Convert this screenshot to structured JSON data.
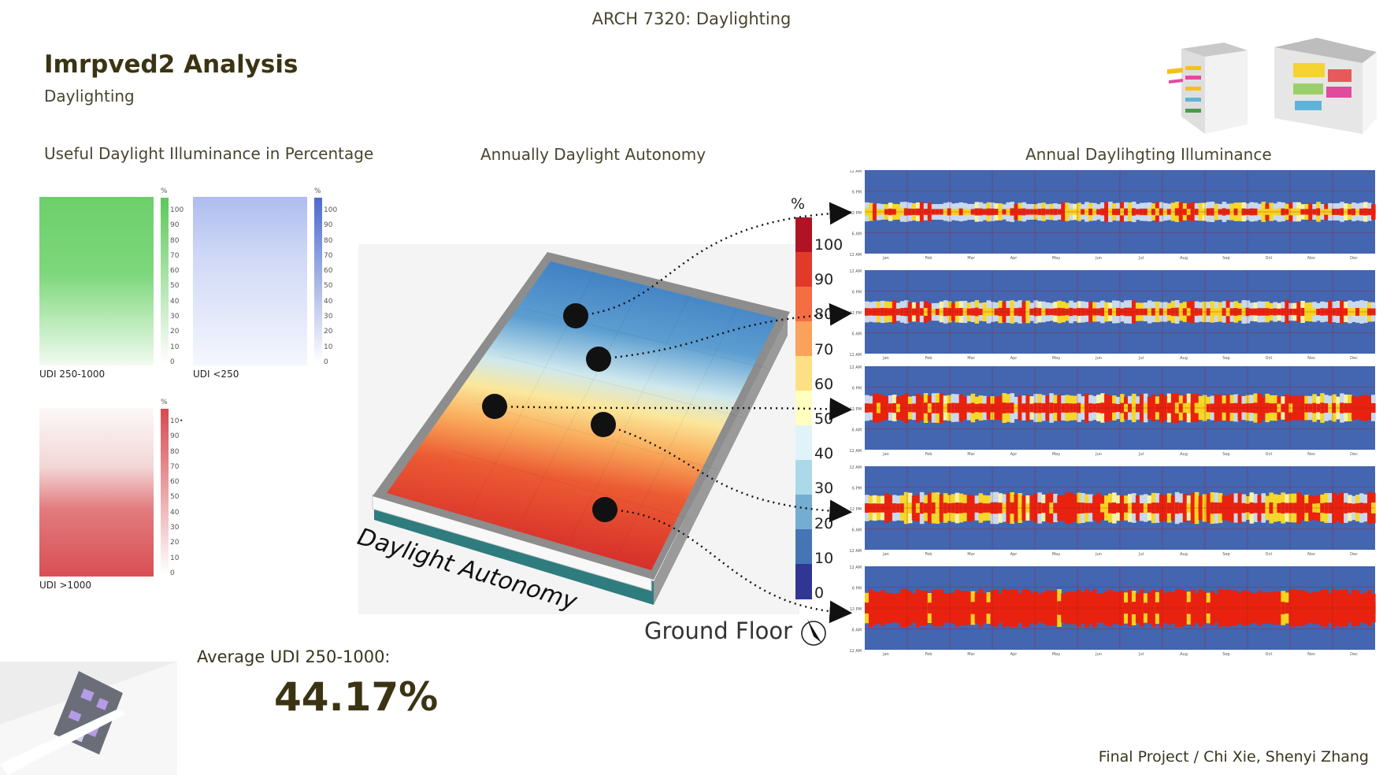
{
  "header": {
    "course": "ARCH 7320: Daylighting",
    "title": "Imrpved2 Analysis",
    "subtitle": "Daylighting"
  },
  "sections": {
    "udi": "Useful Daylight Illuminance in Percentage",
    "autonomy": "Annually Daylight Autonomy",
    "illuminance": "Annual Daylihgting Illuminance"
  },
  "udi_maps": [
    {
      "label": "UDI 250-1000",
      "color": "#5cc85a",
      "unit": "%",
      "ticks": [
        "100",
        "90",
        "80",
        "70",
        "60",
        "50",
        "40",
        "30",
        "20",
        "10",
        "0"
      ]
    },
    {
      "label": "UDI <250",
      "color": "#5b79d6",
      "unit": "%",
      "ticks": [
        "100",
        "90",
        "80",
        "70",
        "60",
        "50",
        "40",
        "30",
        "20",
        "10",
        "0"
      ]
    },
    {
      "label": "UDI >1000",
      "color": "#d85a5e",
      "unit": "%",
      "ticks": [
        "10•",
        "90",
        "80",
        "70",
        "60",
        "50",
        "40",
        "30",
        "20",
        "10",
        "0"
      ]
    }
  ],
  "autonomy": {
    "floor_label": "Daylight Autonomy",
    "floor_name": "Ground Floor",
    "legend_unit": "%",
    "legend_ticks": [
      "100",
      "90",
      "80",
      "70",
      "60",
      "50",
      "40",
      "30",
      "20",
      "10",
      "0"
    ],
    "legend_colors": [
      "#b01323",
      "#e23a2a",
      "#f46d43",
      "#fba15c",
      "#fde083",
      "#ffffbf",
      "#e0f3f8",
      "#abd9e9",
      "#74add1",
      "#4575b4",
      "#313695"
    ]
  },
  "illuminance": {
    "hour_labels": [
      "12 AM",
      "6 PM",
      "12 PM",
      "6 AM",
      "12 AM"
    ],
    "months": [
      "Jan",
      "Feb",
      "Mar",
      "Apr",
      "May",
      "Jun",
      "Jul",
      "Aug",
      "Sep",
      "Oct",
      "Nov",
      "Dec"
    ]
  },
  "summary": {
    "avg_label": "Average UDI 250-1000:",
    "avg_value": "44.17%"
  },
  "footer": "Final Project / Chi Xie, Shenyi Zhang"
}
